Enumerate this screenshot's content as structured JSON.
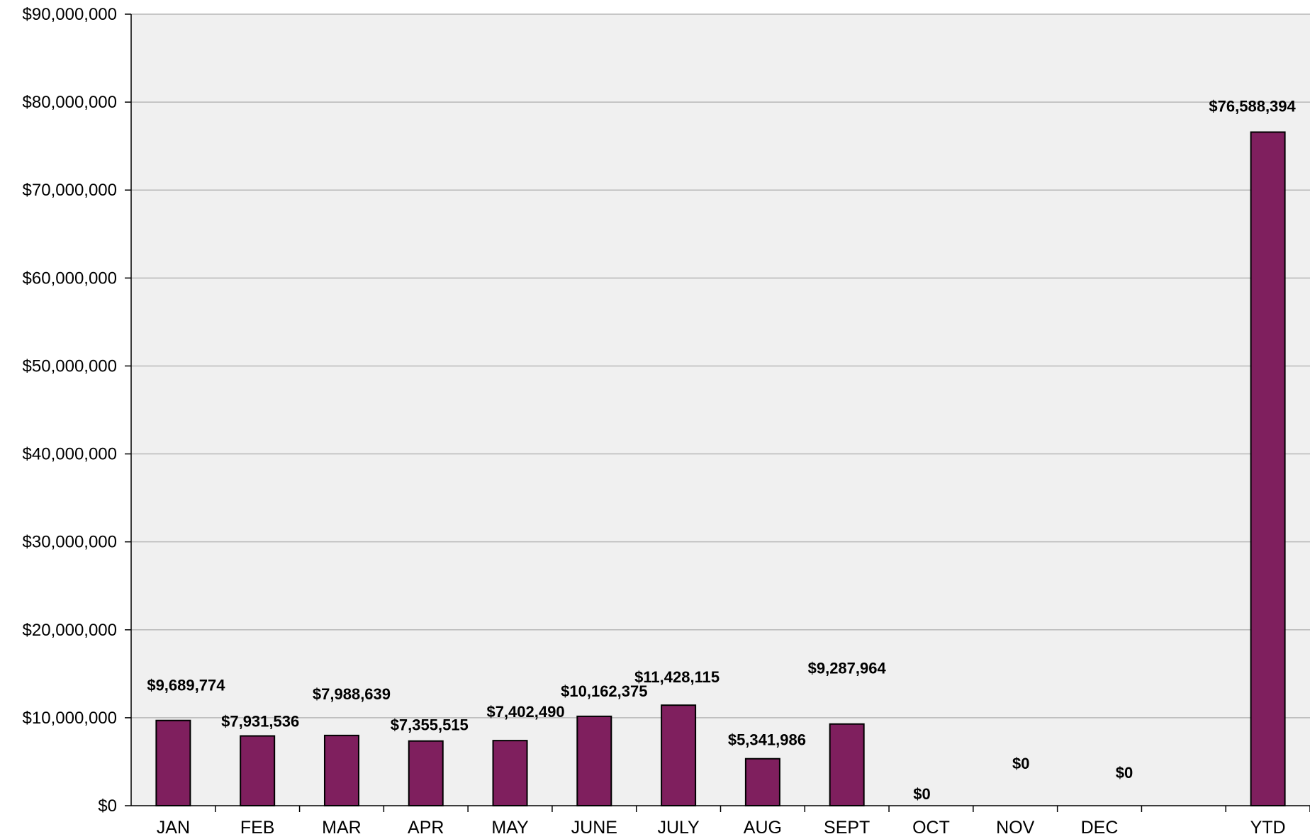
{
  "chart_data": {
    "type": "bar",
    "categories": [
      "JAN",
      "FEB",
      "MAR",
      "APR",
      "MAY",
      "JUNE",
      "JULY",
      "AUG",
      "SEPT",
      "OCT",
      "NOV",
      "DEC",
      "",
      "YTD"
    ],
    "values": [
      9689774,
      7931536,
      7988639,
      7355515,
      7402490,
      10162375,
      11428115,
      5341986,
      9287964,
      0,
      0,
      0,
      null,
      76588394
    ],
    "data_labels": [
      "$9,689,774",
      "$7,931,536",
      "$7,988,639",
      "$7,355,515",
      "$7,402,490",
      "$10,162,375",
      "$11,428,115",
      "$5,341,986",
      "$9,287,964",
      "$0",
      "$0",
      "$0",
      "",
      "$76,588,394"
    ],
    "title": "",
    "xlabel": "",
    "ylabel": "",
    "ylim": [
      0,
      90000000
    ],
    "yticks": [
      "$0",
      "$10,000,000",
      "$20,000,000",
      "$30,000,000",
      "$40,000,000",
      "$50,000,000",
      "$60,000,000",
      "$70,000,000",
      "$80,000,000",
      "$90,000,000"
    ],
    "grid": true,
    "legend": "none",
    "colors": {
      "bar": "#7f1f5e",
      "plot_background": "#f0f0f0",
      "gridline": "#b8b8b8",
      "axis": "#000000"
    }
  }
}
